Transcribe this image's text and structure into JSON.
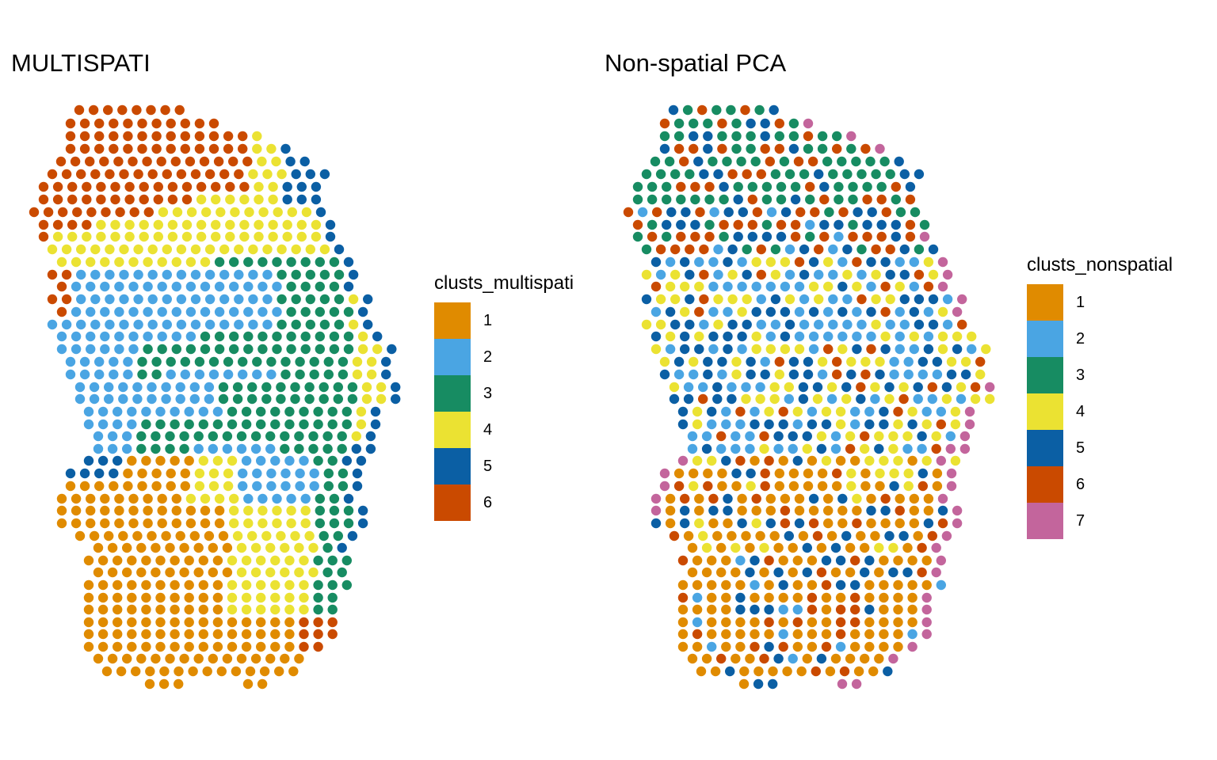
{
  "colors": {
    "1": "#E08B00",
    "2": "#4AA5E3",
    "3": "#178C62",
    "4": "#EBE232",
    "5": "#0B5FA4",
    "6": "#CA4A00",
    "7": "#C3659C"
  },
  "chart_data": [
    {
      "type": "scatter",
      "title": "MULTISPATI",
      "legend": {
        "title": "clusts_multispati",
        "placement": "right",
        "entries": [
          "1",
          "2",
          "3",
          "4",
          "5",
          "6"
        ]
      },
      "grid": false,
      "axes": false,
      "note_regions": "cluster 6 occupies the top-left region, cluster 4 a diagonal band, clusters 2 and 3 the middle, cluster 1 the bottom, cluster 5 the right edge"
    },
    {
      "type": "scatter",
      "title": "Non-spatial PCA",
      "legend": {
        "title": "clusts_nonspatial",
        "placement": "right",
        "entries": [
          "1",
          "2",
          "3",
          "4",
          "5",
          "6",
          "7"
        ]
      },
      "grid": false,
      "axes": false
    }
  ]
}
